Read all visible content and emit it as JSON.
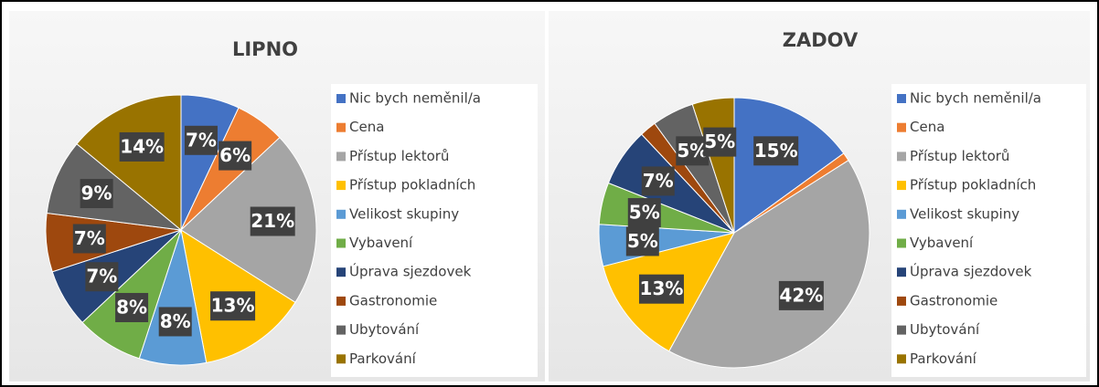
{
  "chart_data": [
    {
      "type": "pie",
      "title": "LIPNO",
      "categories": [
        "Nic bych neměnil/a",
        "Cena",
        "Přístup lektorů",
        "Přístup pokladních",
        "Velikost skupiny",
        "Vybavení",
        "Úprava sjezdovek",
        "Gastronomie",
        "Ubytování",
        "Parkování"
      ],
      "values": [
        7,
        6,
        21,
        13,
        8,
        8,
        7,
        7,
        9,
        14
      ],
      "value_labels": [
        "7%",
        "6%",
        "21%",
        "13%",
        "8%",
        "8%",
        "7%",
        "7%",
        "9%",
        "14%"
      ],
      "colors": [
        "#4472c4",
        "#ed7d31",
        "#a5a5a5",
        "#ffc000",
        "#5b9bd5",
        "#70ad47",
        "#264478",
        "#9e480e",
        "#636363",
        "#997300"
      ],
      "legend": "right"
    },
    {
      "type": "pie",
      "title": "ZADOV",
      "categories": [
        "Nic bych neměnil/a",
        "Cena",
        "Přístup lektorů",
        "Přístup pokladních",
        "Velikost skupiny",
        "Vybavení",
        "Úprava sjezdovek",
        "Gastronomie",
        "Ubytování",
        "Parkování"
      ],
      "values": [
        15,
        1,
        42,
        13,
        5,
        5,
        7,
        2,
        5,
        5
      ],
      "value_labels": [
        "15%",
        null,
        "42%",
        "13%",
        "5%",
        "5%",
        "7%",
        null,
        "5%",
        "5%"
      ],
      "colors": [
        "#4472c4",
        "#ed7d31",
        "#a5a5a5",
        "#ffc000",
        "#5b9bd5",
        "#70ad47",
        "#264478",
        "#9e480e",
        "#636363",
        "#997300"
      ],
      "legend": "right"
    }
  ]
}
